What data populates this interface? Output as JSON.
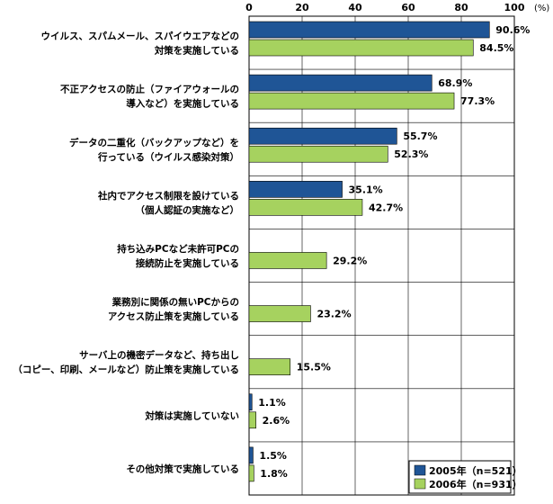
{
  "chart_data": {
    "type": "bar",
    "orientation": "horizontal",
    "unit_label": "(%)",
    "xlim": [
      0,
      100
    ],
    "xticks": [
      "0",
      "20",
      "40",
      "60",
      "80",
      "100"
    ],
    "grid": true,
    "legend_position": "bottom-right",
    "categories": [
      [
        "ウイルス、スパムメール、スパイウエアなどの",
        "対策を実施している"
      ],
      [
        "不正アクセスの防止（ファイアウォールの",
        "導入など）を実施している"
      ],
      [
        "データの二重化（バックアップなど）を",
        "行っている（ウイルス感染対策）"
      ],
      [
        "社内でアクセス制限を設けている",
        "（個人認証の実施など）"
      ],
      [
        "持ち込みPCなど未許可PCの",
        "接続防止を実施している"
      ],
      [
        "業務別に関係の無いPCからの",
        "アクセス防止策を実施している"
      ],
      [
        "サーバ上の機密データなど、持ち出し",
        "（コピー、印刷、メールなど）防止策を実施している"
      ],
      [
        "対策は実施していない"
      ],
      [
        "その他対策で実施している"
      ]
    ],
    "series": [
      {
        "name": "2005年（n=521）",
        "color": "#1f5596",
        "values": [
          90.6,
          68.9,
          55.7,
          35.1,
          null,
          null,
          null,
          1.1,
          1.5
        ],
        "labels": [
          "90.6%",
          "68.9%",
          "55.7%",
          "35.1%",
          "",
          "",
          "",
          "1.1%",
          "1.5%"
        ]
      },
      {
        "name": "2006年（n=931）",
        "color": "#a6d25f",
        "values": [
          84.5,
          77.3,
          52.3,
          42.7,
          29.2,
          23.2,
          15.5,
          2.6,
          1.8
        ],
        "labels": [
          "84.5%",
          "77.3%",
          "52.3%",
          "42.7%",
          "29.2%",
          "23.2%",
          "15.5%",
          "2.6%",
          "1.8%"
        ]
      }
    ]
  }
}
